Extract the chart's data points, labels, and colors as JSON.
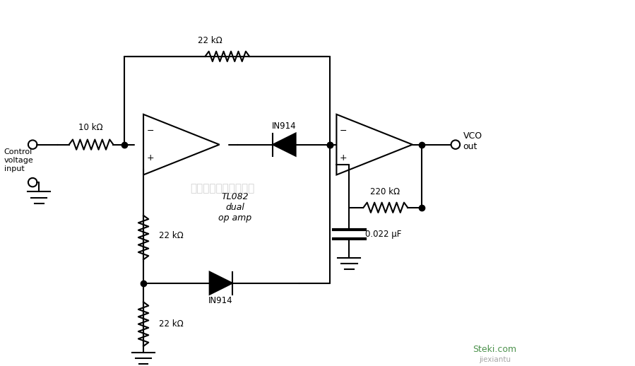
{
  "background_color": "#ffffff",
  "title": "",
  "fig_width": 8.99,
  "fig_height": 5.18,
  "dpi": 100,
  "line_color": "#000000",
  "line_width": 1.5,
  "dot_size": 6,
  "labels": {
    "control_voltage": "Control\nvoltage\ninput",
    "r1": "10 kΩ",
    "r2": "22 kΩ",
    "r3": "22 kΩ",
    "r4": "22 kΩ",
    "r5": "220 kΩ",
    "cap": "0.022 μF",
    "d1": "IN914",
    "d2": "IN914",
    "tl082": "TL082\ndual\nop amp",
    "vco": "VCO\nout"
  },
  "watermark": "深圳将睿科技有限公司",
  "watermark2": "jiexiantu",
  "watermark3": "Steki.com"
}
